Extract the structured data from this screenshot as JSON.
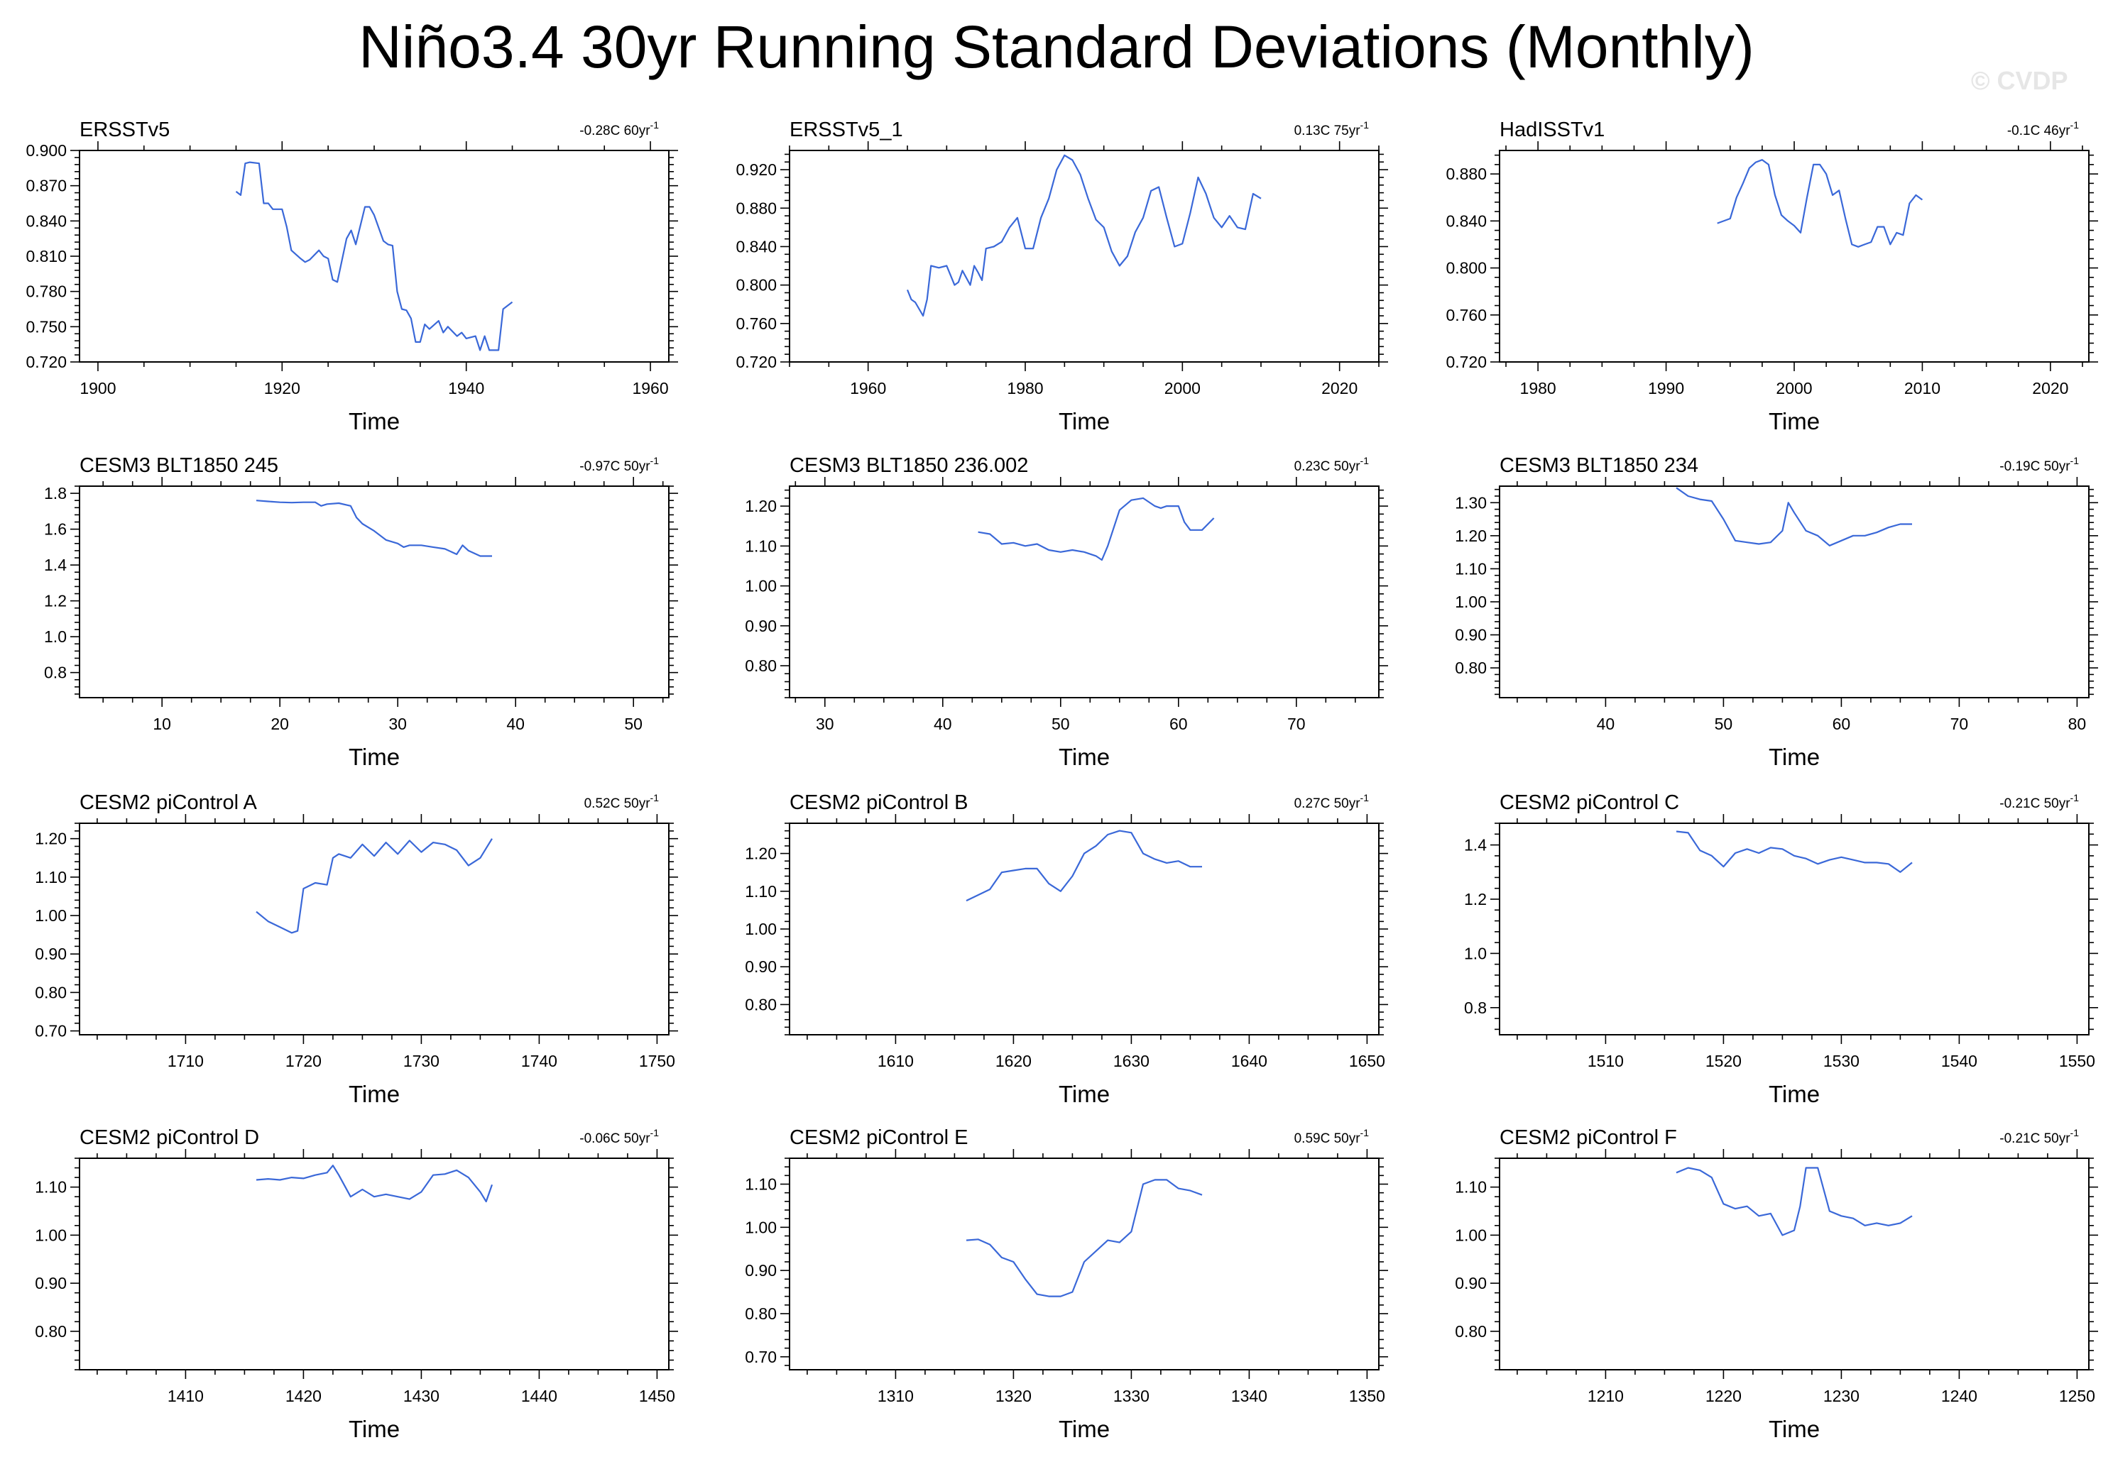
{
  "title": "Niño3.4 30yr Running Standard Deviations (Monthly)",
  "watermark": "© CVDP",
  "colors": {
    "series": "#3a68d8",
    "axis": "#000000"
  },
  "chart_data": [
    {
      "type": "line",
      "title": "ERSSTv5",
      "trend": "-0.28C 60yr",
      "trend_sup": "-1",
      "xlabel": "Time",
      "xlim": [
        1898,
        1962
      ],
      "ylim": [
        0.72,
        0.9
      ],
      "xticks": [
        1900,
        1920,
        1940,
        1960
      ],
      "xtick_labels": [
        "1900",
        "1920",
        "1940",
        "1960"
      ],
      "yticks": [
        0.72,
        0.75,
        0.78,
        0.81,
        0.84,
        0.87,
        0.9
      ],
      "ytick_labels": [
        "0.720",
        "0.750",
        "0.780",
        "0.810",
        "0.840",
        "0.870",
        "0.900"
      ],
      "x": [
        1915,
        1915.5,
        1916,
        1916.5,
        1917.5,
        1918,
        1918.5,
        1919,
        1920,
        1920.5,
        1921,
        1922,
        1922.5,
        1923,
        1924,
        1924.5,
        1925,
        1925.5,
        1926,
        1927,
        1927.5,
        1928,
        1929,
        1929.5,
        1930,
        1931,
        1931.5,
        1932,
        1932.5,
        1933,
        1933.5,
        1934,
        1934.5,
        1935,
        1935.5,
        1936,
        1937,
        1937.5,
        1938,
        1939,
        1939.5,
        1940,
        1941,
        1941.5,
        1942,
        1942.5,
        1943,
        1943.5,
        1944,
        1945
      ],
      "y": [
        0.865,
        0.862,
        0.889,
        0.89,
        0.889,
        0.855,
        0.855,
        0.85,
        0.85,
        0.835,
        0.815,
        0.808,
        0.805,
        0.807,
        0.815,
        0.81,
        0.808,
        0.79,
        0.788,
        0.825,
        0.832,
        0.82,
        0.852,
        0.852,
        0.845,
        0.823,
        0.82,
        0.819,
        0.78,
        0.765,
        0.764,
        0.757,
        0.737,
        0.737,
        0.752,
        0.748,
        0.755,
        0.745,
        0.75,
        0.742,
        0.745,
        0.74,
        0.742,
        0.73,
        0.742,
        0.73,
        0.73,
        0.73,
        0.765,
        0.771
      ]
    },
    {
      "type": "line",
      "title": "ERSSTv5_1",
      "trend": "0.13C 75yr",
      "trend_sup": "-1",
      "xlabel": "Time",
      "xlim": [
        1950,
        2025
      ],
      "ylim": [
        0.72,
        0.94
      ],
      "xticks": [
        1960,
        1980,
        2000,
        2020
      ],
      "xtick_labels": [
        "1960",
        "1980",
        "2000",
        "2020"
      ],
      "yticks": [
        0.72,
        0.76,
        0.8,
        0.84,
        0.88,
        0.92
      ],
      "ytick_labels": [
        "0.720",
        "0.760",
        "0.800",
        "0.840",
        "0.880",
        "0.920"
      ],
      "x": [
        1965,
        1965.5,
        1966,
        1967,
        1967.5,
        1968,
        1969,
        1970,
        1971,
        1971.5,
        1972,
        1973,
        1973.5,
        1974,
        1974.5,
        1975,
        1976,
        1977,
        1978,
        1979,
        1980,
        1981,
        1982,
        1983,
        1984,
        1985,
        1986,
        1987,
        1988,
        1989,
        1990,
        1991,
        1992,
        1993,
        1994,
        1995,
        1996,
        1997,
        1998,
        1999,
        2000,
        2001,
        2002,
        2003,
        2004,
        2005,
        2006,
        2007,
        2008,
        2009,
        2010
      ],
      "y": [
        0.795,
        0.785,
        0.782,
        0.768,
        0.785,
        0.82,
        0.818,
        0.82,
        0.8,
        0.803,
        0.815,
        0.8,
        0.82,
        0.813,
        0.805,
        0.838,
        0.84,
        0.845,
        0.86,
        0.87,
        0.838,
        0.838,
        0.87,
        0.89,
        0.92,
        0.935,
        0.93,
        0.915,
        0.89,
        0.868,
        0.86,
        0.835,
        0.82,
        0.83,
        0.855,
        0.87,
        0.898,
        0.902,
        0.87,
        0.84,
        0.843,
        0.875,
        0.912,
        0.895,
        0.87,
        0.86,
        0.872,
        0.86,
        0.858,
        0.895,
        0.89
      ]
    },
    {
      "type": "line",
      "title": "HadISSTv1",
      "trend": "-0.1C 46yr",
      "trend_sup": "-1",
      "xlabel": "Time",
      "xlim": [
        1977,
        2023
      ],
      "ylim": [
        0.72,
        0.9
      ],
      "xticks": [
        1980,
        1990,
        2000,
        2010,
        2020
      ],
      "xtick_labels": [
        "1980",
        "1990",
        "2000",
        "2010",
        "2020"
      ],
      "yticks": [
        0.72,
        0.76,
        0.8,
        0.84,
        0.88
      ],
      "ytick_labels": [
        "0.720",
        "0.760",
        "0.800",
        "0.840",
        "0.880"
      ],
      "x": [
        1994,
        1995,
        1995.5,
        1996,
        1996.5,
        1997,
        1997.5,
        1998,
        1998.5,
        1999,
        1999.5,
        2000,
        2000.5,
        2001,
        2001.5,
        2002,
        2002.5,
        2003,
        2003.5,
        2004,
        2004.5,
        2005,
        2005.5,
        2006,
        2006.5,
        2007,
        2007.5,
        2008,
        2008.5,
        2009,
        2009.5,
        2010
      ],
      "y": [
        0.838,
        0.842,
        0.86,
        0.872,
        0.885,
        0.89,
        0.892,
        0.888,
        0.862,
        0.845,
        0.84,
        0.836,
        0.83,
        0.86,
        0.888,
        0.888,
        0.88,
        0.862,
        0.866,
        0.842,
        0.82,
        0.818,
        0.82,
        0.822,
        0.835,
        0.835,
        0.82,
        0.83,
        0.828,
        0.855,
        0.862,
        0.858
      ]
    },
    {
      "type": "line",
      "title": "CESM3 BLT1850 245",
      "trend": "-0.97C 50yr",
      "trend_sup": "-1",
      "xlabel": "Time",
      "xlim": [
        3,
        53
      ],
      "ylim": [
        0.66,
        1.84
      ],
      "xticks": [
        10,
        20,
        30,
        40,
        50
      ],
      "xtick_labels": [
        "10",
        "20",
        "30",
        "40",
        "50"
      ],
      "yticks": [
        0.8,
        1.0,
        1.2,
        1.4,
        1.6,
        1.8
      ],
      "ytick_labels": [
        "0.8",
        "1.0",
        "1.2",
        "1.4",
        "1.6",
        "1.8"
      ],
      "x": [
        18,
        19,
        20,
        21,
        22,
        23,
        23.5,
        24,
        25,
        26,
        26.5,
        27,
        28,
        29,
        30,
        30.5,
        31,
        32,
        33,
        34,
        35,
        35.5,
        36,
        37,
        38
      ],
      "y": [
        1.76,
        1.755,
        1.75,
        1.748,
        1.75,
        1.75,
        1.73,
        1.74,
        1.745,
        1.73,
        1.665,
        1.63,
        1.59,
        1.54,
        1.52,
        1.5,
        1.51,
        1.51,
        1.5,
        1.49,
        1.46,
        1.51,
        1.48,
        1.45,
        1.45
      ]
    },
    {
      "type": "line",
      "title": "CESM3 BLT1850 236.002",
      "trend": "0.23C 50yr",
      "trend_sup": "-1",
      "xlabel": "Time",
      "xlim": [
        27,
        77
      ],
      "ylim": [
        0.72,
        1.25
      ],
      "xticks": [
        30,
        40,
        50,
        60,
        70
      ],
      "xtick_labels": [
        "30",
        "40",
        "50",
        "60",
        "70"
      ],
      "yticks": [
        0.8,
        0.9,
        1.0,
        1.1,
        1.2
      ],
      "ytick_labels": [
        "0.80",
        "0.90",
        "1.00",
        "1.10",
        "1.20"
      ],
      "x": [
        43,
        44,
        45,
        46,
        47,
        48,
        49,
        50,
        51,
        52,
        53,
        53.5,
        54,
        55,
        56,
        57,
        58,
        58.5,
        59,
        60,
        60.5,
        61,
        62,
        63
      ],
      "y": [
        1.135,
        1.13,
        1.105,
        1.108,
        1.1,
        1.105,
        1.09,
        1.085,
        1.09,
        1.085,
        1.075,
        1.065,
        1.1,
        1.19,
        1.215,
        1.22,
        1.2,
        1.195,
        1.2,
        1.2,
        1.16,
        1.14,
        1.14,
        1.17
      ]
    },
    {
      "type": "line",
      "title": "CESM3 BLT1850 234",
      "trend": "-0.19C 50yr",
      "trend_sup": "-1",
      "xlabel": "Time",
      "xlim": [
        31,
        81
      ],
      "ylim": [
        0.71,
        1.35
      ],
      "xticks": [
        40,
        50,
        60,
        70,
        80
      ],
      "xtick_labels": [
        "40",
        "50",
        "60",
        "70",
        "80"
      ],
      "yticks": [
        0.8,
        0.9,
        1.0,
        1.1,
        1.2,
        1.3
      ],
      "ytick_labels": [
        "0.80",
        "0.90",
        "1.00",
        "1.10",
        "1.20",
        "1.30"
      ],
      "x": [
        46,
        47,
        48,
        49,
        50,
        51,
        52,
        53,
        54,
        55,
        55.5,
        56,
        57,
        58,
        59,
        60,
        61,
        62,
        63,
        64,
        65,
        66
      ],
      "y": [
        1.345,
        1.32,
        1.31,
        1.305,
        1.25,
        1.185,
        1.18,
        1.175,
        1.18,
        1.215,
        1.3,
        1.27,
        1.215,
        1.2,
        1.17,
        1.185,
        1.2,
        1.2,
        1.21,
        1.225,
        1.235,
        1.235
      ]
    },
    {
      "type": "line",
      "title": "CESM2 piControl A",
      "trend": "0.52C 50yr",
      "trend_sup": "-1",
      "xlabel": "Time",
      "xlim": [
        1701,
        1751
      ],
      "ylim": [
        0.69,
        1.24
      ],
      "xticks": [
        1710,
        1720,
        1730,
        1740,
        1750
      ],
      "xtick_labels": [
        "1710",
        "1720",
        "1730",
        "1740",
        "1750"
      ],
      "yticks": [
        0.7,
        0.8,
        0.9,
        1.0,
        1.1,
        1.2
      ],
      "ytick_labels": [
        "0.70",
        "0.80",
        "0.90",
        "1.00",
        "1.10",
        "1.20"
      ],
      "x": [
        1716,
        1717,
        1718,
        1719,
        1719.5,
        1720,
        1721,
        1722,
        1722.5,
        1723,
        1724,
        1725,
        1726,
        1727,
        1728,
        1729,
        1730,
        1731,
        1732,
        1733,
        1734,
        1735,
        1736
      ],
      "y": [
        1.01,
        0.985,
        0.97,
        0.955,
        0.96,
        1.07,
        1.085,
        1.08,
        1.15,
        1.16,
        1.15,
        1.185,
        1.155,
        1.19,
        1.16,
        1.195,
        1.165,
        1.19,
        1.185,
        1.17,
        1.13,
        1.15,
        1.2
      ]
    },
    {
      "type": "line",
      "title": "CESM2 piControl B",
      "trend": "0.27C 50yr",
      "trend_sup": "-1",
      "xlabel": "Time",
      "xlim": [
        1601,
        1651
      ],
      "ylim": [
        0.72,
        1.28
      ],
      "xticks": [
        1610,
        1620,
        1630,
        1640,
        1650
      ],
      "xtick_labels": [
        "1610",
        "1620",
        "1630",
        "1640",
        "1650"
      ],
      "yticks": [
        0.8,
        0.9,
        1.0,
        1.1,
        1.2
      ],
      "ytick_labels": [
        "0.80",
        "0.90",
        "1.00",
        "1.10",
        "1.20"
      ],
      "x": [
        1616,
        1617,
        1618,
        1619,
        1620,
        1621,
        1622,
        1623,
        1624,
        1625,
        1626,
        1627,
        1628,
        1629,
        1630,
        1631,
        1632,
        1633,
        1634,
        1635,
        1636
      ],
      "y": [
        1.075,
        1.09,
        1.105,
        1.15,
        1.155,
        1.16,
        1.16,
        1.12,
        1.1,
        1.14,
        1.2,
        1.22,
        1.25,
        1.26,
        1.255,
        1.2,
        1.185,
        1.175,
        1.18,
        1.165,
        1.165
      ]
    },
    {
      "type": "line",
      "title": "CESM2 piControl C",
      "trend": "-0.21C 50yr",
      "trend_sup": "-1",
      "xlabel": "Time",
      "xlim": [
        1501,
        1551
      ],
      "ylim": [
        0.7,
        1.48
      ],
      "xticks": [
        1510,
        1520,
        1530,
        1540,
        1550
      ],
      "xtick_labels": [
        "1510",
        "1520",
        "1530",
        "1540",
        "1550"
      ],
      "yticks": [
        0.8,
        1.0,
        1.2,
        1.4
      ],
      "ytick_labels": [
        "0.8",
        "1.0",
        "1.2",
        "1.4"
      ],
      "x": [
        1516,
        1517,
        1518,
        1519,
        1520,
        1521,
        1522,
        1523,
        1524,
        1525,
        1526,
        1527,
        1528,
        1529,
        1530,
        1531,
        1532,
        1533,
        1534,
        1535,
        1536
      ],
      "y": [
        1.45,
        1.445,
        1.38,
        1.36,
        1.32,
        1.37,
        1.385,
        1.37,
        1.39,
        1.385,
        1.36,
        1.35,
        1.33,
        1.345,
        1.355,
        1.345,
        1.335,
        1.335,
        1.33,
        1.3,
        1.335
      ]
    },
    {
      "type": "line",
      "title": "CESM2 piControl D",
      "trend": "-0.06C 50yr",
      "trend_sup": "-1",
      "xlabel": "Time",
      "xlim": [
        1401,
        1451
      ],
      "ylim": [
        0.72,
        1.16
      ],
      "xticks": [
        1410,
        1420,
        1430,
        1440,
        1450
      ],
      "xtick_labels": [
        "1410",
        "1420",
        "1430",
        "1440",
        "1450"
      ],
      "yticks": [
        0.8,
        0.9,
        1.0,
        1.1
      ],
      "ytick_labels": [
        "0.80",
        "0.90",
        "1.00",
        "1.10"
      ],
      "x": [
        1416,
        1417,
        1418,
        1419,
        1420,
        1421,
        1422,
        1422.5,
        1423,
        1424,
        1425,
        1426,
        1427,
        1428,
        1429,
        1430,
        1431,
        1432,
        1433,
        1434,
        1435,
        1435.5,
        1436
      ],
      "y": [
        1.115,
        1.117,
        1.115,
        1.12,
        1.118,
        1.125,
        1.13,
        1.145,
        1.125,
        1.08,
        1.095,
        1.08,
        1.085,
        1.08,
        1.075,
        1.09,
        1.125,
        1.127,
        1.135,
        1.12,
        1.09,
        1.07,
        1.105
      ]
    },
    {
      "type": "line",
      "title": "CESM2 piControl E",
      "trend": "0.59C 50yr",
      "trend_sup": "-1",
      "xlabel": "Time",
      "xlim": [
        1301,
        1351
      ],
      "ylim": [
        0.67,
        1.16
      ],
      "xticks": [
        1310,
        1320,
        1330,
        1340,
        1350
      ],
      "xtick_labels": [
        "1310",
        "1320",
        "1330",
        "1340",
        "1350"
      ],
      "yticks": [
        0.7,
        0.8,
        0.9,
        1.0,
        1.1
      ],
      "ytick_labels": [
        "0.70",
        "0.80",
        "0.90",
        "1.00",
        "1.10"
      ],
      "x": [
        1316,
        1317,
        1318,
        1319,
        1320,
        1321,
        1322,
        1323,
        1324,
        1325,
        1326,
        1327,
        1328,
        1329,
        1330,
        1331,
        1332,
        1333,
        1334,
        1335,
        1336
      ],
      "y": [
        0.97,
        0.972,
        0.96,
        0.93,
        0.92,
        0.88,
        0.845,
        0.84,
        0.84,
        0.85,
        0.92,
        0.945,
        0.97,
        0.965,
        0.99,
        1.1,
        1.11,
        1.11,
        1.09,
        1.085,
        1.075
      ]
    },
    {
      "type": "line",
      "title": "CESM2 piControl F",
      "trend": "-0.21C 50yr",
      "trend_sup": "-1",
      "xlabel": "Time",
      "xlim": [
        1201,
        1251
      ],
      "ylim": [
        0.72,
        1.16
      ],
      "xticks": [
        1210,
        1220,
        1230,
        1240,
        1250
      ],
      "xtick_labels": [
        "1210",
        "1220",
        "1230",
        "1240",
        "1250"
      ],
      "yticks": [
        0.8,
        0.9,
        1.0,
        1.1
      ],
      "ytick_labels": [
        "0.80",
        "0.90",
        "1.00",
        "1.10"
      ],
      "x": [
        1216,
        1217,
        1218,
        1219,
        1220,
        1221,
        1222,
        1223,
        1224,
        1225,
        1226,
        1226.5,
        1227,
        1228,
        1229,
        1230,
        1231,
        1232,
        1233,
        1234,
        1235,
        1236
      ],
      "y": [
        1.13,
        1.14,
        1.135,
        1.12,
        1.065,
        1.055,
        1.06,
        1.04,
        1.045,
        1.0,
        1.01,
        1.06,
        1.14,
        1.14,
        1.05,
        1.04,
        1.035,
        1.02,
        1.025,
        1.02,
        1.025,
        1.04
      ]
    }
  ]
}
